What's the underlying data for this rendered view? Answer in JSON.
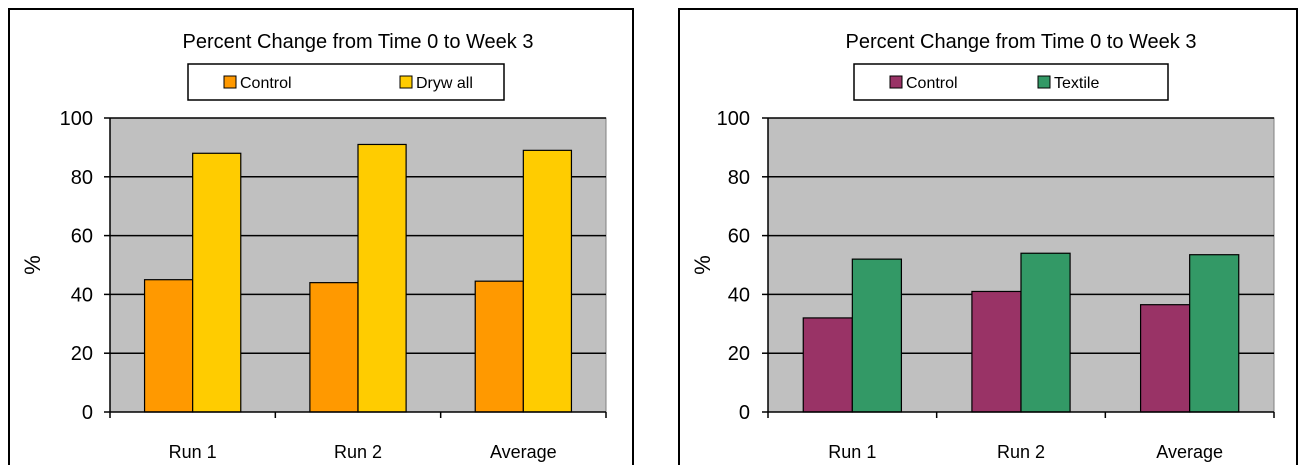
{
  "chart_data": [
    {
      "type": "bar",
      "title": "Percent Change from Time 0 to Week 3",
      "ylabel": "%",
      "xlabel": "",
      "ylim": [
        0,
        100
      ],
      "yticks": [
        0,
        20,
        40,
        60,
        80,
        100
      ],
      "categories": [
        "Run 1",
        "Run 2",
        "Average"
      ],
      "series": [
        {
          "name": "Control",
          "color": "#FF9900",
          "values": [
            45,
            44,
            44.5
          ]
        },
        {
          "name": "Dryw all",
          "color": "#FFCC00",
          "values": [
            88,
            91,
            89
          ]
        }
      ],
      "grid": true,
      "plot_background": "#C0C0C0",
      "legend": "top"
    },
    {
      "type": "bar",
      "title": "Percent Change from Time 0 to Week 3",
      "ylabel": "%",
      "xlabel": "",
      "ylim": [
        0,
        100
      ],
      "yticks": [
        0,
        20,
        40,
        60,
        80,
        100
      ],
      "categories": [
        "Run 1",
        "Run 2",
        "Average"
      ],
      "series": [
        {
          "name": "Control",
          "color": "#993366",
          "values": [
            32,
            41,
            36.5
          ]
        },
        {
          "name": "Textile",
          "color": "#339966",
          "values": [
            52,
            54,
            53.5
          ]
        }
      ],
      "grid": true,
      "plot_background": "#C0C0C0",
      "legend": "top"
    }
  ]
}
